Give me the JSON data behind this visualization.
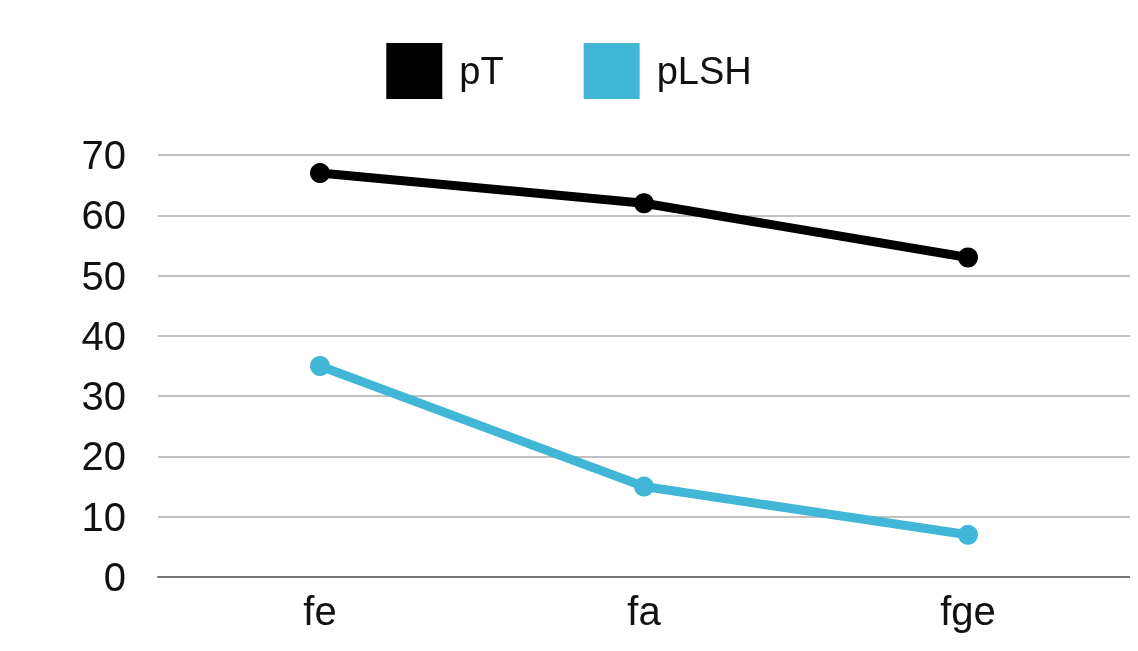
{
  "chart_data": {
    "type": "line",
    "categories": [
      "fe",
      "fa",
      "fge"
    ],
    "series": [
      {
        "name": "pT",
        "color": "#000000",
        "values": [
          67,
          62,
          53
        ]
      },
      {
        "name": "pLSH",
        "color": "#41b6d6",
        "values": [
          35,
          15,
          7
        ]
      }
    ],
    "ylim": [
      0,
      70
    ],
    "yticks": [
      0,
      10,
      20,
      30,
      40,
      50,
      60,
      70
    ],
    "grid": "y",
    "legend": "top",
    "marker": "circle"
  }
}
